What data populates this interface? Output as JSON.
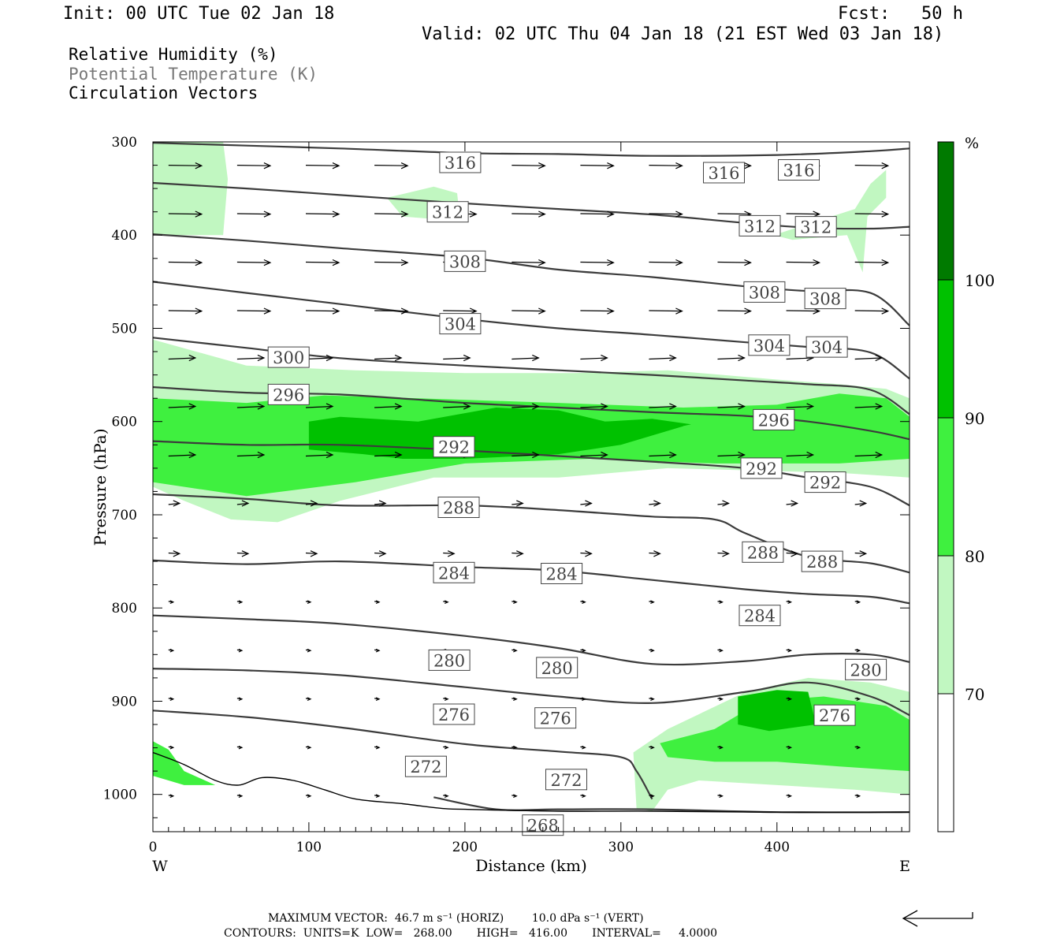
{
  "header": {
    "init": "Init: 00 UTC Tue 02 Jan 18",
    "fcst": "Fcst:   50 h",
    "valid": "Valid: 02 UTC Thu 04 Jan 18 (21 EST Wed 03 Jan 18)"
  },
  "legend": {
    "fields": [
      {
        "label": "Relative Humidity (%)",
        "color": "#000000"
      },
      {
        "label": "Potential Temperature (K)",
        "color": "#777777"
      },
      {
        "label": "Circulation Vectors",
        "color": "#000000"
      }
    ]
  },
  "chart_data": {
    "type": "cross-section",
    "xlabel": "Distance (km)",
    "ylabel": "Pressure (hPa)",
    "x_ticks": [
      0,
      100,
      200,
      300,
      400
    ],
    "y_ticks": [
      300,
      400,
      500,
      600,
      700,
      800,
      900,
      1000
    ],
    "xlim": [
      0,
      485
    ],
    "ylim": [
      300,
      1040
    ],
    "x_end_labels": {
      "left": "W",
      "right": "E"
    },
    "colorbar": {
      "unit": "%",
      "levels": [
        70,
        80,
        90,
        100
      ],
      "colors": [
        "#ffffff",
        "#c1f7c1",
        "#3ff03f",
        "#00c100",
        "#007a00"
      ]
    },
    "theta_contours": [
      {
        "value": 316,
        "points": [
          [
            0,
            301
          ],
          [
            60,
            304
          ],
          [
            120,
            307
          ],
          [
            200,
            312
          ],
          [
            260,
            313
          ],
          [
            320,
            315
          ],
          [
            400,
            314
          ],
          [
            460,
            310
          ],
          [
            485,
            307
          ]
        ]
      },
      {
        "value": 312,
        "points": [
          [
            0,
            344
          ],
          [
            60,
            350
          ],
          [
            120,
            357
          ],
          [
            200,
            366
          ],
          [
            260,
            372
          ],
          [
            320,
            378
          ],
          [
            380,
            387
          ],
          [
            420,
            392
          ],
          [
            460,
            393
          ],
          [
            485,
            391
          ]
        ]
      },
      {
        "value": 308,
        "points": [
          [
            0,
            399
          ],
          [
            60,
            406
          ],
          [
            120,
            414
          ],
          [
            200,
            424
          ],
          [
            260,
            437
          ],
          [
            320,
            445
          ],
          [
            380,
            455
          ],
          [
            420,
            460
          ],
          [
            460,
            462
          ],
          [
            485,
            497
          ]
        ]
      },
      {
        "value": 304,
        "points": [
          [
            0,
            450
          ],
          [
            60,
            462
          ],
          [
            120,
            474
          ],
          [
            200,
            490
          ],
          [
            260,
            500
          ],
          [
            320,
            507
          ],
          [
            380,
            515
          ],
          [
            420,
            520
          ],
          [
            460,
            526
          ],
          [
            485,
            554
          ]
        ]
      },
      {
        "value": 300,
        "points": [
          [
            0,
            510
          ],
          [
            60,
            521
          ],
          [
            120,
            532
          ],
          [
            200,
            540
          ],
          [
            260,
            545
          ],
          [
            320,
            550
          ],
          [
            380,
            556
          ],
          [
            420,
            560
          ],
          [
            460,
            566
          ],
          [
            485,
            592
          ]
        ]
      },
      {
        "value": 296,
        "points": [
          [
            0,
            563
          ],
          [
            60,
            569
          ],
          [
            120,
            571
          ],
          [
            200,
            580
          ],
          [
            260,
            585
          ],
          [
            320,
            590
          ],
          [
            380,
            594
          ],
          [
            420,
            600
          ],
          [
            460,
            610
          ],
          [
            485,
            619
          ]
        ]
      },
      {
        "value": 292,
        "points": [
          [
            0,
            621
          ],
          [
            60,
            625
          ],
          [
            120,
            625
          ],
          [
            200,
            631
          ],
          [
            260,
            637
          ],
          [
            320,
            643
          ],
          [
            380,
            650
          ],
          [
            420,
            660
          ],
          [
            460,
            670
          ],
          [
            485,
            690
          ]
        ]
      },
      {
        "value": 288,
        "points": [
          [
            0,
            678
          ],
          [
            60,
            683
          ],
          [
            120,
            690
          ],
          [
            200,
            690
          ],
          [
            260,
            695
          ],
          [
            320,
            702
          ],
          [
            360,
            705
          ],
          [
            380,
            720
          ],
          [
            420,
            745
          ],
          [
            460,
            752
          ],
          [
            485,
            762
          ]
        ]
      },
      {
        "value": 284,
        "points": [
          [
            0,
            749
          ],
          [
            60,
            753
          ],
          [
            120,
            750
          ],
          [
            200,
            756
          ],
          [
            260,
            760
          ],
          [
            320,
            770
          ],
          [
            380,
            780
          ],
          [
            420,
            785
          ],
          [
            460,
            788
          ],
          [
            485,
            795
          ]
        ]
      },
      {
        "value": 280,
        "points": [
          [
            0,
            808
          ],
          [
            60,
            812
          ],
          [
            120,
            817
          ],
          [
            200,
            830
          ],
          [
            260,
            843
          ],
          [
            320,
            860
          ],
          [
            380,
            857
          ],
          [
            420,
            850
          ],
          [
            460,
            850
          ],
          [
            485,
            858
          ]
        ]
      },
      {
        "value": 276,
        "points": [
          [
            0,
            865
          ],
          [
            60,
            867
          ],
          [
            120,
            872
          ],
          [
            200,
            885
          ],
          [
            260,
            895
          ],
          [
            320,
            902
          ],
          [
            380,
            890
          ],
          [
            420,
            880
          ],
          [
            460,
            895
          ],
          [
            485,
            915
          ]
        ]
      },
      {
        "value": 272,
        "points": [
          [
            0,
            910
          ],
          [
            60,
            917
          ],
          [
            120,
            928
          ],
          [
            200,
            946
          ],
          [
            260,
            954
          ],
          [
            300,
            960
          ],
          [
            310,
            975
          ],
          [
            320,
            1005
          ]
        ]
      },
      {
        "value": 268,
        "points": [
          [
            180,
            1003
          ],
          [
            220,
            1016
          ],
          [
            260,
            1016
          ],
          [
            320,
            1016
          ],
          [
            400,
            1019
          ],
          [
            485,
            1019
          ]
        ]
      }
    ],
    "theta_labels": [
      {
        "value": 316,
        "at": [
          197,
          322
        ]
      },
      {
        "value": 316,
        "at": [
          366,
          333
        ]
      },
      {
        "value": 316,
        "at": [
          414,
          330
        ]
      },
      {
        "value": 312,
        "at": [
          189,
          375
        ]
      },
      {
        "value": 312,
        "at": [
          389,
          390
        ]
      },
      {
        "value": 312,
        "at": [
          425,
          391
        ]
      },
      {
        "value": 308,
        "at": [
          200,
          428
        ]
      },
      {
        "value": 308,
        "at": [
          392,
          461
        ]
      },
      {
        "value": 308,
        "at": [
          431,
          468
        ]
      },
      {
        "value": 304,
        "at": [
          197,
          495
        ]
      },
      {
        "value": 304,
        "at": [
          395,
          518
        ]
      },
      {
        "value": 304,
        "at": [
          432,
          520
        ]
      },
      {
        "value": 300,
        "at": [
          87,
          531
        ]
      },
      {
        "value": 296,
        "at": [
          87,
          571
        ]
      },
      {
        "value": 296,
        "at": [
          398,
          598
        ]
      },
      {
        "value": 292,
        "at": [
          193,
          627
        ]
      },
      {
        "value": 292,
        "at": [
          390,
          650
        ]
      },
      {
        "value": 292,
        "at": [
          431,
          665
        ]
      },
      {
        "value": 288,
        "at": [
          196,
          692
        ]
      },
      {
        "value": 288,
        "at": [
          391,
          740
        ]
      },
      {
        "value": 288,
        "at": [
          429,
          750
        ]
      },
      {
        "value": 284,
        "at": [
          193,
          762
        ]
      },
      {
        "value": 284,
        "at": [
          262,
          763
        ]
      },
      {
        "value": 284,
        "at": [
          389,
          808
        ]
      },
      {
        "value": 280,
        "at": [
          190,
          856
        ]
      },
      {
        "value": 280,
        "at": [
          259,
          864
        ]
      },
      {
        "value": 280,
        "at": [
          457,
          866
        ]
      },
      {
        "value": 276,
        "at": [
          193,
          914
        ]
      },
      {
        "value": 276,
        "at": [
          258,
          918
        ]
      },
      {
        "value": 276,
        "at": [
          437,
          915
        ]
      },
      {
        "value": 272,
        "at": [
          175,
          970
        ]
      },
      {
        "value": 272,
        "at": [
          265,
          984
        ]
      },
      {
        "value": 268,
        "at": [
          250,
          1033
        ]
      }
    ],
    "rh_shading": [
      {
        "level": 70,
        "points": [
          [
            0,
            300
          ],
          [
            45,
            300
          ],
          [
            48,
            340
          ],
          [
            45,
            400
          ],
          [
            0,
            400
          ]
        ]
      },
      {
        "level": 70,
        "points": [
          [
            150,
            360
          ],
          [
            180,
            348
          ],
          [
            195,
            355
          ],
          [
            197,
            385
          ],
          [
            160,
            380
          ]
        ]
      },
      {
        "level": 70,
        "points": [
          [
            398,
            400
          ],
          [
            420,
            388
          ],
          [
            450,
            372
          ],
          [
            460,
            345
          ],
          [
            470,
            330
          ],
          [
            470,
            360
          ],
          [
            458,
            380
          ],
          [
            455,
            440
          ],
          [
            445,
            400
          ],
          [
            410,
            405
          ]
        ]
      },
      {
        "level": 70,
        "points": [
          [
            0,
            512
          ],
          [
            60,
            540
          ],
          [
            130,
            545
          ],
          [
            200,
            548
          ],
          [
            270,
            548
          ],
          [
            330,
            545
          ],
          [
            400,
            555
          ],
          [
            440,
            560
          ],
          [
            470,
            565
          ],
          [
            485,
            575
          ],
          [
            485,
            660
          ],
          [
            440,
            655
          ],
          [
            330,
            650
          ],
          [
            260,
            660
          ],
          [
            180,
            660
          ],
          [
            120,
            685
          ],
          [
            80,
            708
          ],
          [
            50,
            705
          ],
          [
            20,
            685
          ],
          [
            0,
            670
          ]
        ]
      },
      {
        "level": 80,
        "points": [
          [
            0,
            575
          ],
          [
            60,
            580
          ],
          [
            110,
            572
          ],
          [
            170,
            575
          ],
          [
            260,
            580
          ],
          [
            340,
            585
          ],
          [
            400,
            582
          ],
          [
            440,
            570
          ],
          [
            470,
            575
          ],
          [
            485,
            595
          ],
          [
            485,
            640
          ],
          [
            440,
            645
          ],
          [
            360,
            645
          ],
          [
            280,
            640
          ],
          [
            200,
            645
          ],
          [
            130,
            665
          ],
          [
            60,
            680
          ],
          [
            0,
            665
          ]
        ]
      },
      {
        "level": 90,
        "points": [
          [
            100,
            600
          ],
          [
            120,
            595
          ],
          [
            170,
            600
          ],
          [
            220,
            585
          ],
          [
            260,
            588
          ],
          [
            290,
            600
          ],
          [
            320,
            600
          ],
          [
            340,
            605
          ],
          [
            300,
            625
          ],
          [
            260,
            635
          ],
          [
            200,
            640
          ],
          [
            160,
            640
          ],
          [
            135,
            635
          ],
          [
            100,
            630
          ]
        ]
      },
      {
        "level": 90,
        "points": [
          [
            290,
            600
          ],
          [
            320,
            597
          ],
          [
            345,
            603
          ],
          [
            320,
            612
          ],
          [
            295,
            610
          ]
        ]
      },
      {
        "level": 70,
        "points": [
          [
            308,
            955
          ],
          [
            330,
            930
          ],
          [
            380,
            890
          ],
          [
            420,
            875
          ],
          [
            460,
            880
          ],
          [
            485,
            890
          ],
          [
            485,
            1000
          ],
          [
            450,
            995
          ],
          [
            400,
            990
          ],
          [
            350,
            985
          ],
          [
            330,
            995
          ],
          [
            320,
            1018
          ],
          [
            310,
            1015
          ]
        ]
      },
      {
        "level": 80,
        "points": [
          [
            325,
            945
          ],
          [
            360,
            930
          ],
          [
            390,
            900
          ],
          [
            430,
            895
          ],
          [
            470,
            905
          ],
          [
            485,
            920
          ],
          [
            485,
            975
          ],
          [
            440,
            970
          ],
          [
            400,
            965
          ],
          [
            360,
            965
          ],
          [
            330,
            960
          ]
        ]
      },
      {
        "level": 90,
        "points": [
          [
            375,
            895
          ],
          [
            400,
            888
          ],
          [
            420,
            890
          ],
          [
            425,
            925
          ],
          [
            395,
            932
          ],
          [
            375,
            925
          ]
        ]
      },
      {
        "level": 80,
        "points": [
          [
            0,
            943
          ],
          [
            10,
            952
          ],
          [
            20,
            975
          ],
          [
            40,
            990
          ],
          [
            20,
            990
          ],
          [
            0,
            980
          ]
        ]
      }
    ],
    "vectors_note": "circulation vectors drawn as arrows"
  },
  "footer": {
    "max_vector_line": "MAXIMUM VECTOR:  46.7 m s⁻¹ (HORIZ)        10.0 dPa s⁻¹ (VERT)",
    "contours_line": "CONTOURS:  UNITS=K  LOW=   268.00       HIGH=   416.00       INTERVAL=     4.0000"
  }
}
